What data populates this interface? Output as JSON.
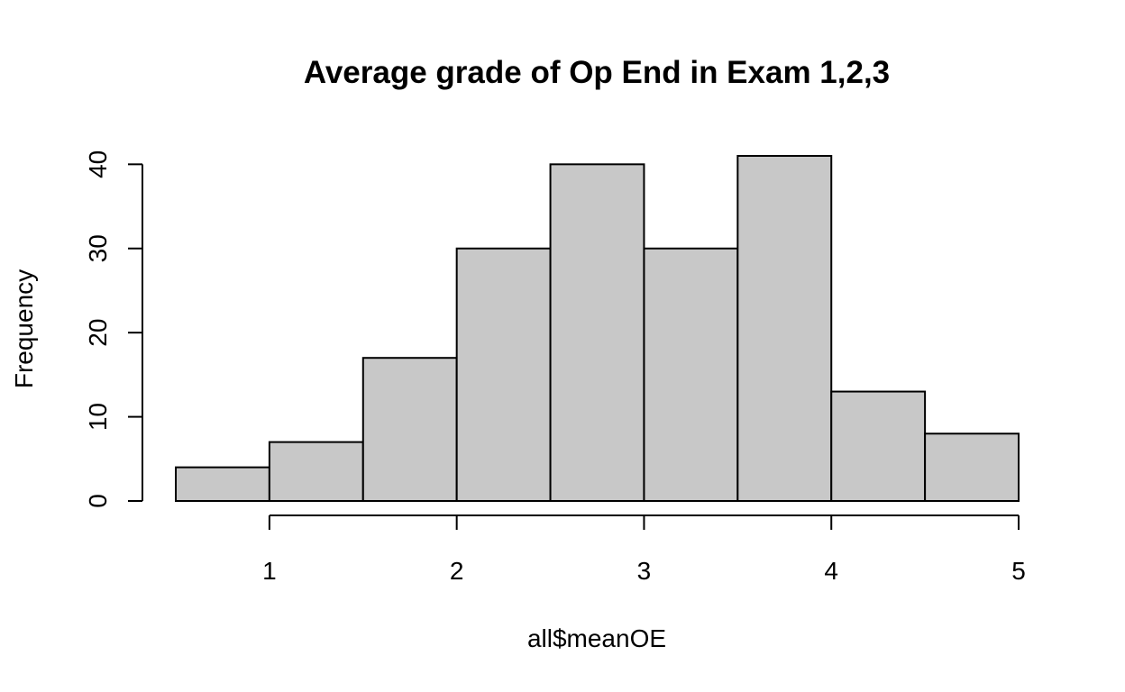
{
  "chart_data": {
    "type": "histogram",
    "title": "Average grade of Op End in Exam 1,2,3",
    "xlabel": "all$meanOE",
    "ylabel": "Frequency",
    "bins": [
      {
        "from": 0.5,
        "to": 1.0,
        "count": 4
      },
      {
        "from": 1.0,
        "to": 1.5,
        "count": 7
      },
      {
        "from": 1.5,
        "to": 2.0,
        "count": 17
      },
      {
        "from": 2.0,
        "to": 2.5,
        "count": 30
      },
      {
        "from": 2.5,
        "to": 3.0,
        "count": 40
      },
      {
        "from": 3.0,
        "to": 3.5,
        "count": 30
      },
      {
        "from": 3.5,
        "to": 4.0,
        "count": 41
      },
      {
        "from": 4.0,
        "to": 4.5,
        "count": 13
      },
      {
        "from": 4.5,
        "to": 5.0,
        "count": 8
      }
    ],
    "xlim": [
      0.5,
      5.0
    ],
    "ylim": [
      0,
      41
    ],
    "x_ticks": [
      1,
      2,
      3,
      4,
      5
    ],
    "x_tick_labels": [
      "1",
      "2",
      "3",
      "4",
      "5"
    ],
    "y_ticks": [
      0,
      10,
      20,
      30,
      40
    ],
    "y_tick_labels": [
      "0",
      "10",
      "20",
      "30",
      "40"
    ],
    "bar_fill": "#c8c8c8",
    "bar_stroke": "#000000",
    "grid": false,
    "legend": "none"
  }
}
